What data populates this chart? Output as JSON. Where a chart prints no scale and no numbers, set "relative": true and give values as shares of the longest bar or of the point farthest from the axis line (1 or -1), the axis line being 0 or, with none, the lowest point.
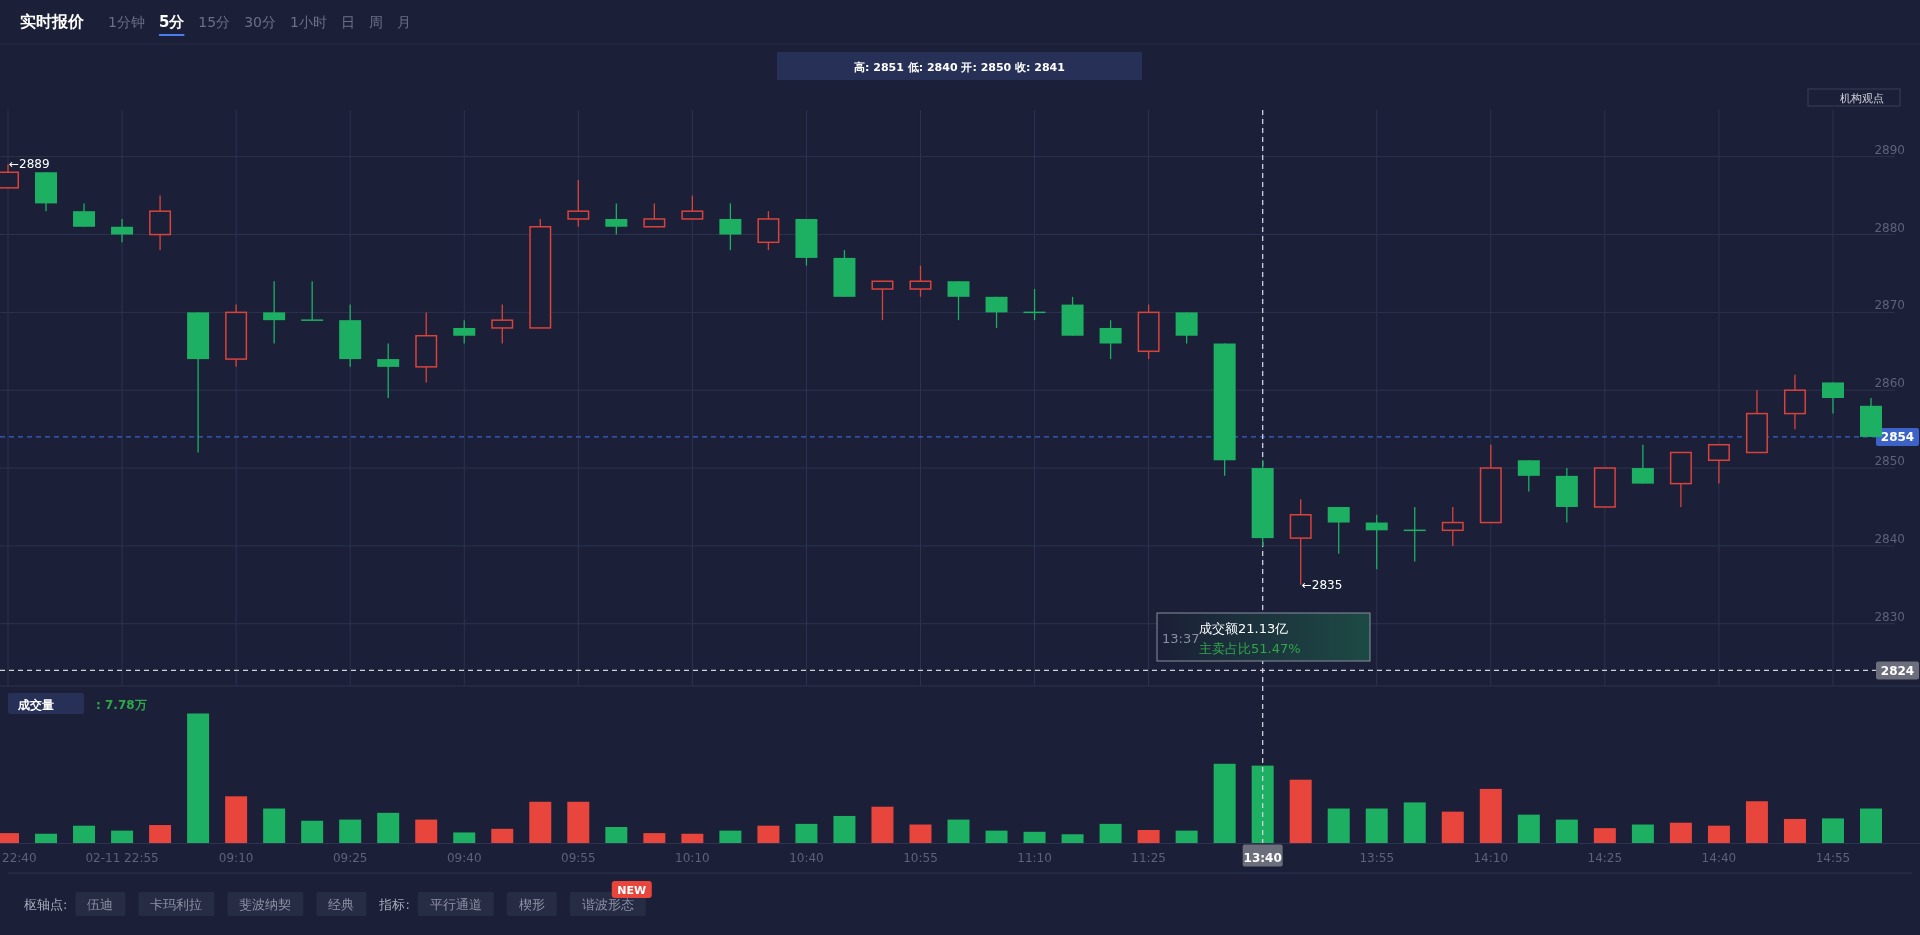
{
  "chart_data": [
    {
      "type": "candlestick",
      "title": "实时报价",
      "categories": [
        "22:40",
        null,
        null,
        "02-11 22:55",
        null,
        null,
        "09:10",
        null,
        null,
        "09:25",
        null,
        null,
        "09:40",
        null,
        null,
        "09:55",
        null,
        null,
        "10:10",
        null,
        null,
        "10:40",
        null,
        null,
        "10:55",
        null,
        null,
        "11:10",
        null,
        null,
        "11:25",
        null,
        null,
        "13:40",
        null,
        null,
        "13:55",
        null,
        null,
        "14:10",
        null,
        null,
        "14:25",
        null,
        null,
        "14:40",
        null,
        null,
        "14:55",
        null
      ],
      "ohlc": [
        [
          2886,
          2889,
          2886,
          2888
        ],
        [
          2888,
          2888,
          2883,
          2884
        ],
        [
          2883,
          2884,
          2881,
          2881
        ],
        [
          2881,
          2882,
          2879,
          2880
        ],
        [
          2880,
          2885,
          2878,
          2883
        ],
        [
          2870,
          2870,
          2852,
          2864
        ],
        [
          2864,
          2871,
          2863,
          2870
        ],
        [
          2870,
          2874,
          2866,
          2869
        ],
        [
          2869,
          2874,
          2869,
          2869
        ],
        [
          2869,
          2871,
          2863,
          2864
        ],
        [
          2864,
          2866,
          2859,
          2863
        ],
        [
          2863,
          2870,
          2861,
          2867
        ],
        [
          2868,
          2869,
          2866,
          2867
        ],
        [
          2868,
          2871,
          2866,
          2869
        ],
        [
          2868,
          2882,
          2868,
          2881
        ],
        [
          2882,
          2887,
          2881,
          2883
        ],
        [
          2882,
          2884,
          2880,
          2881
        ],
        [
          2881,
          2884,
          2881,
          2882
        ],
        [
          2882,
          2885,
          2882,
          2883
        ],
        [
          2882,
          2884,
          2878,
          2880
        ],
        [
          2879,
          2883,
          2878,
          2882
        ],
        [
          2882,
          2882,
          2876,
          2877
        ],
        [
          2877,
          2878,
          2872,
          2872
        ],
        [
          2873,
          2874,
          2869,
          2874
        ],
        [
          2873,
          2876,
          2872,
          2874
        ],
        [
          2874,
          2874,
          2869,
          2872
        ],
        [
          2872,
          2872,
          2868,
          2870
        ],
        [
          2870,
          2873,
          2869,
          2870
        ],
        [
          2871,
          2872,
          2867,
          2867
        ],
        [
          2868,
          2869,
          2864,
          2866
        ],
        [
          2865,
          2871,
          2864,
          2870
        ],
        [
          2870,
          2870,
          2866,
          2867
        ],
        [
          2866,
          2866,
          2849,
          2851
        ],
        [
          2850,
          2851,
          2840,
          2841
        ],
        [
          2841,
          2846,
          2835,
          2844
        ],
        [
          2845,
          2845,
          2839,
          2843
        ],
        [
          2843,
          2844,
          2837,
          2842
        ],
        [
          2842,
          2845,
          2838,
          2842
        ],
        [
          2842,
          2845,
          2840,
          2843
        ],
        [
          2843,
          2853,
          2843,
          2850
        ],
        [
          2851,
          2851,
          2847,
          2849
        ],
        [
          2849,
          2850,
          2843,
          2845
        ],
        [
          2845,
          2850,
          2845,
          2850
        ],
        [
          2850,
          2853,
          2848,
          2848
        ],
        [
          2848,
          2852,
          2845,
          2852
        ],
        [
          2851,
          2853,
          2848,
          2853
        ],
        [
          2852,
          2860,
          2852,
          2857
        ],
        [
          2857,
          2862,
          2855,
          2860
        ],
        [
          2861,
          2861,
          2857,
          2859
        ],
        [
          2858,
          2859,
          2854,
          2854
        ]
      ],
      "colors": [
        "#d9433c",
        "#1db063",
        "#1db063",
        "#1db063",
        "#d9433c",
        "#1db063",
        "#d9433c",
        "#1db063",
        "#1db063",
        "#1db063",
        "#1db063",
        "#d9433c",
        "#1db063",
        "#d9433c",
        "#d9433c",
        "#d9433c",
        "#1db063",
        "#d9433c",
        "#d9433c",
        "#1db063",
        "#d9433c",
        "#1db063",
        "#1db063",
        "#d9433c",
        "#d9433c",
        "#1db063",
        "#1db063",
        "#1db063",
        "#1db063",
        "#1db063",
        "#d9433c",
        "#1db063",
        "#1db063",
        "#1db063",
        "#d9433c",
        "#1db063",
        "#1db063",
        "#1db063",
        "#d9433c",
        "#d9433c",
        "#1db063",
        "#1db063",
        "#d9433c",
        "#1db063",
        "#d9433c",
        "#d9433c",
        "#d9433c",
        "#d9433c",
        "#1db063",
        "#1db063"
      ],
      "ylim": [
        2822,
        2896
      ],
      "yticks": [
        2830,
        2840,
        2850,
        2860,
        2870,
        2880,
        2890
      ],
      "grid": true,
      "tick_labels": "y",
      "ref_lines": [
        {
          "axis": "y",
          "value": 2854,
          "label": "2854",
          "color": "#3d63c9",
          "line_style": "dashed"
        },
        {
          "axis": "y",
          "value": 2824,
          "label": "2824",
          "color": "#d0d2da",
          "line_style": "dashed"
        },
        {
          "axis": "x",
          "value": "13:40",
          "color": "#d0d2da",
          "line_style": "dashed"
        }
      ],
      "annotations": [
        "1分钟",
        "5分",
        "15分",
        "30分",
        "1小时",
        "日",
        "周",
        "月",
        "高: 2851 低: 2840 开: 2850 收: 2841",
        "机构观点",
        "13:37",
        "成交额21.13亿",
        "主卖占比51.47%",
        "←2889",
        "←2835"
      ]
    },
    {
      "type": "bar",
      "title": "成交量",
      "relative": true,
      "tick_labels": "x",
      "categories": [
        "22:40",
        null,
        null,
        "02-11 22:55",
        null,
        null,
        "09:10",
        null,
        null,
        "09:25",
        null,
        null,
        "09:40",
        null,
        null,
        "09:55",
        null,
        null,
        "10:10",
        null,
        null,
        "10:40",
        null,
        null,
        "10:55",
        null,
        null,
        "11:10",
        null,
        null,
        "11:25",
        null,
        null,
        "13:40",
        null,
        null,
        "13:55",
        null,
        null,
        "14:10",
        null,
        null,
        "14:25",
        null,
        null,
        "14:40",
        null,
        null,
        "14:55",
        null
      ],
      "values": [
        0.08,
        0.075,
        0.137,
        0.099,
        0.142,
        1,
        0.363,
        0.269,
        0.175,
        0.184,
        0.236,
        0.184,
        0.085,
        0.113,
        0.321,
        0.321,
        0.127,
        0.08,
        0.075,
        0.099,
        0.137,
        0.151,
        0.212,
        0.283,
        0.146,
        0.184,
        0.099,
        0.09,
        0.071,
        0.151,
        0.104,
        0.099,
        0.613,
        0.599,
        0.491,
        0.269,
        0.269,
        0.316,
        0.245,
        0.42,
        0.222,
        0.184,
        0.118,
        0.146,
        0.16,
        0.137,
        0.325,
        0.189,
        0.193,
        0.269
      ],
      "colors": [
        "#e8453c",
        "#1db063",
        "#1db063",
        "#1db063",
        "#e8453c",
        "#1db063",
        "#e8453c",
        "#1db063",
        "#1db063",
        "#1db063",
        "#1db063",
        "#e8453c",
        "#1db063",
        "#e8453c",
        "#e8453c",
        "#e8453c",
        "#1db063",
        "#e8453c",
        "#e8453c",
        "#1db063",
        "#e8453c",
        "#1db063",
        "#1db063",
        "#e8453c",
        "#e8453c",
        "#1db063",
        "#1db063",
        "#1db063",
        "#1db063",
        "#1db063",
        "#e8453c",
        "#1db063",
        "#1db063",
        "#1db063",
        "#e8453c",
        "#1db063",
        "#1db063",
        "#1db063",
        "#e8453c",
        "#e8453c",
        "#1db063",
        "#1db063",
        "#e8453c",
        "#1db063",
        "#e8453c",
        "#e8453c",
        "#e8453c",
        "#e8453c",
        "#1db063",
        "#1db063"
      ],
      "ref_lines": [
        {
          "axis": "x",
          "value": "13:40",
          "color": "#d0d2da",
          "line_style": "dashed"
        }
      ],
      "annotations": [
        ": 7.78万",
        "枢轴点:",
        "伍迪",
        "卡玛利拉",
        "斐波纳契",
        "经典",
        "指标:",
        "平行通道",
        "楔形",
        "谐波形态",
        "NEW"
      ]
    }
  ]
}
